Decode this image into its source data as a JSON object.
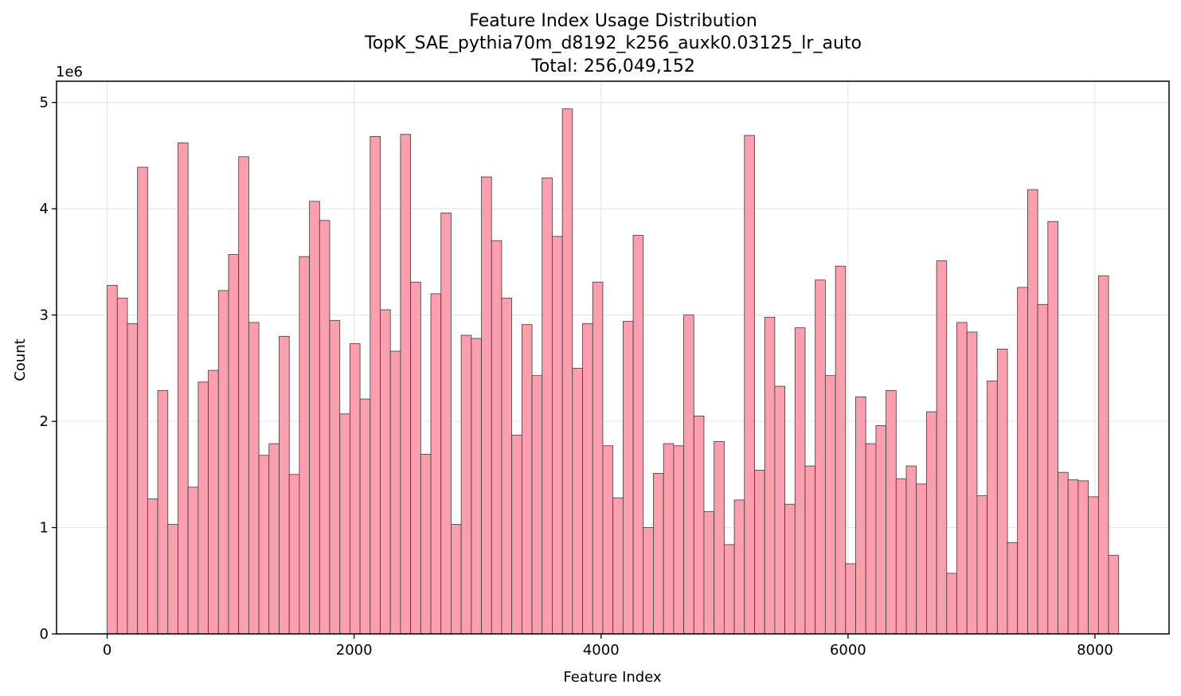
{
  "chart_data": {
    "type": "bar",
    "title_lines": [
      "Feature Index Usage Distribution",
      "TopK_SAE_pythia70m_d8192_k256_auxk0.03125_lr_auto",
      "Total: 256,049,152"
    ],
    "xlabel": "Feature Index",
    "ylabel": "Count",
    "y_offset_label": "1e6",
    "xlim": [
      -410,
      8600
    ],
    "ylim": [
      0,
      5.2
    ],
    "x_ticks": [
      0,
      2000,
      4000,
      6000,
      8000
    ],
    "x_tick_labels": [
      "0",
      "2000",
      "4000",
      "6000",
      "8000"
    ],
    "y_ticks": [
      0,
      1,
      2,
      3,
      4,
      5
    ],
    "y_tick_labels": [
      "0",
      "1",
      "2",
      "3",
      "4",
      "5"
    ],
    "grid": true,
    "bin_start": 0,
    "bin_width": 81.92,
    "bar_color": "#fb9fae",
    "edge_color": "#3a3a3a",
    "values": [
      3.28,
      3.16,
      2.92,
      4.39,
      1.27,
      2.29,
      1.03,
      4.62,
      1.38,
      2.37,
      2.48,
      3.23,
      3.57,
      4.49,
      2.93,
      1.68,
      1.79,
      2.8,
      1.5,
      3.55,
      4.07,
      3.89,
      2.95,
      2.07,
      2.73,
      2.21,
      4.68,
      3.05,
      2.66,
      4.7,
      3.31,
      1.69,
      3.2,
      3.96,
      1.03,
      2.81,
      2.78,
      4.3,
      3.7,
      3.16,
      1.87,
      2.91,
      2.43,
      4.29,
      3.74,
      4.94,
      2.5,
      2.92,
      3.31,
      1.77,
      1.28,
      2.94,
      3.75,
      1.0,
      1.51,
      1.79,
      1.77,
      3.0,
      2.05,
      1.15,
      1.81,
      0.84,
      1.26,
      4.69,
      1.54,
      2.98,
      2.33,
      1.22,
      2.88,
      1.58,
      3.33,
      2.43,
      3.46,
      0.66,
      2.23,
      1.79,
      1.96,
      2.29,
      1.46,
      1.58,
      1.41,
      2.09,
      3.51,
      0.57,
      2.93,
      2.84,
      1.3,
      2.38,
      2.68,
      0.86,
      3.26,
      4.18,
      3.1,
      3.88,
      1.52,
      1.45,
      1.44,
      1.29,
      3.37,
      0.74
    ]
  }
}
